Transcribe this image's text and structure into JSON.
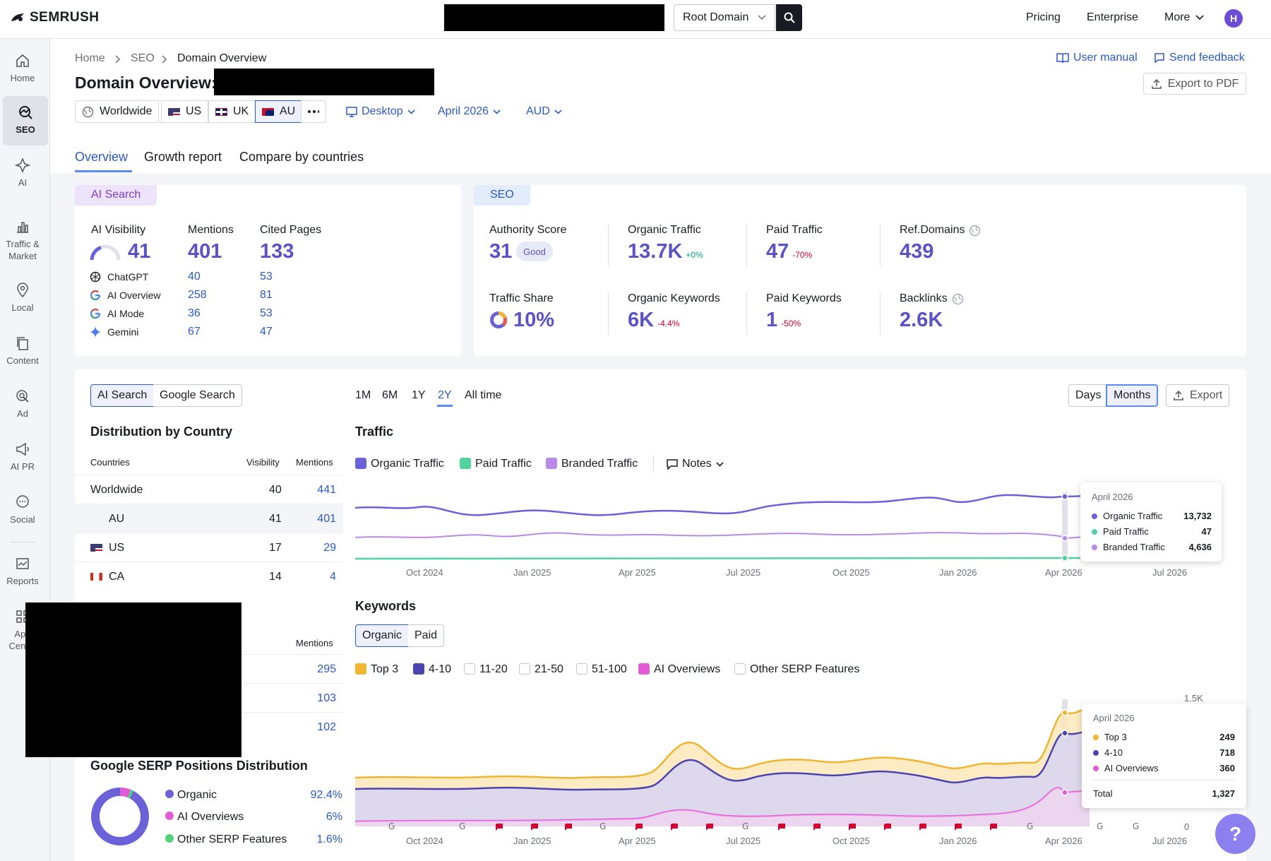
{
  "topbar": {
    "logo": "SEMRUSH",
    "db_select": "Root Domain",
    "nav": [
      "Pricing",
      "Enterprise",
      "More"
    ],
    "avatar": "H"
  },
  "sidebar": {
    "items": [
      "Home",
      "SEO",
      "AI",
      "Traffic &\nMarket",
      "Local",
      "Content",
      "Ad",
      "AI PR",
      "Social",
      "Reports",
      "App\nCenter"
    ]
  },
  "header": {
    "breadcrumb": [
      "Home",
      "SEO",
      "Domain Overview"
    ],
    "title": "Domain Overview:",
    "user_manual": "User manual",
    "send_feedback": "Send feedback",
    "export_pdf": "Export to PDF",
    "locations": [
      "Worldwide",
      "US",
      "UK",
      "AU"
    ],
    "device": "Desktop",
    "date": "April 2026",
    "currency": "AUD"
  },
  "tabs": [
    "Overview",
    "Growth report",
    "Compare by countries"
  ],
  "ai_card": {
    "pill": "AI Search",
    "headers": [
      "AI Visibility",
      "Mentions",
      "Cited Pages"
    ],
    "visibility": "41",
    "mentions": "401",
    "cited": "133",
    "rows": [
      {
        "name": "ChatGPT",
        "mentions": "40",
        "cited": "53"
      },
      {
        "name": "AI Overview",
        "mentions": "258",
        "cited": "81"
      },
      {
        "name": "AI Mode",
        "mentions": "36",
        "cited": "53"
      },
      {
        "name": "Gemini",
        "mentions": "67",
        "cited": "47"
      }
    ]
  },
  "seo_card": {
    "pill": "SEO",
    "authority_label": "Authority Score",
    "authority": "31",
    "authority_badge": "Good",
    "organic_label": "Organic Traffic",
    "organic": "13.7K",
    "organic_delta": "+0%",
    "paid_label": "Paid Traffic",
    "paid": "47",
    "paid_delta": "-70%",
    "refdomains_label": "Ref.Domains",
    "refdomains": "439",
    "share_label": "Traffic Share",
    "share": "10%",
    "okw_label": "Organic Keywords",
    "okw": "6K",
    "okw_delta": "-4.4%",
    "pkw_label": "Paid Keywords",
    "pkw": "1",
    "pkw_delta": "-50%",
    "backlinks_label": "Backlinks",
    "backlinks": "2.6K"
  },
  "lower": {
    "toggle": [
      "AI Search",
      "Google Search"
    ],
    "periods": [
      "1M",
      "6M",
      "1Y",
      "2Y",
      "All time"
    ],
    "view": [
      "Days",
      "Months"
    ],
    "export": "Export",
    "dist_title": "Distribution by Country",
    "dist_headers": [
      "Countries",
      "Visibility",
      "Mentions"
    ],
    "dist_rows": [
      {
        "country": "Worldwide",
        "visibility": "40",
        "mentions": "441"
      },
      {
        "country": "AU",
        "visibility": "41",
        "mentions": "401"
      },
      {
        "country": "US",
        "visibility": "17",
        "mentions": "29"
      },
      {
        "country": "CA",
        "visibility": "14",
        "mentions": "4"
      }
    ],
    "second_header": "Mentions",
    "second_rows": [
      "295",
      "103",
      "102"
    ],
    "serp_title": "Google SERP Positions Distribution",
    "serp_rows": [
      {
        "label": "Organic",
        "value": "92.4%",
        "color": "#6b62d9"
      },
      {
        "label": "AI Overviews",
        "value": "6%",
        "color": "#e45bd8"
      },
      {
        "label": "Other SERP Features",
        "value": "1.6%",
        "color": "#52d27a"
      }
    ],
    "traffic_title": "Traffic",
    "traffic_legend": [
      "Organic Traffic",
      "Paid Traffic",
      "Branded Traffic"
    ],
    "notes": "Notes",
    "keywords_title": "Keywords",
    "kw_toggle": [
      "Organic",
      "Paid"
    ],
    "kw_legend": [
      "Top 3",
      "4-10",
      "11-20",
      "21-50",
      "51-100",
      "AI Overviews",
      "Other SERP Features"
    ],
    "x_ticks": [
      "Oct 2024",
      "Jan 2025",
      "Apr 2025",
      "Jul 2025",
      "Oct 2025",
      "Jan 2026",
      "Apr 2026",
      "Jul 2026"
    ],
    "kw_y_ticks": [
      "1.5K",
      "0"
    ],
    "traffic_tooltip": {
      "title": "April 2026",
      "rows": [
        {
          "label": "Organic Traffic",
          "value": "13,732",
          "color": "#6b62d9"
        },
        {
          "label": "Paid Traffic",
          "value": "47",
          "color": "#52d2a0"
        },
        {
          "label": "Branded Traffic",
          "value": "4,636",
          "color": "#b98ae8"
        }
      ]
    },
    "kw_tooltip": {
      "title": "April 2026",
      "rows": [
        {
          "label": "Top 3",
          "value": "249",
          "color": "#f2b531"
        },
        {
          "label": "4-10",
          "value": "718",
          "color": "#4b44b0"
        },
        {
          "label": "AI Overviews",
          "value": "360",
          "color": "#e45bd8"
        }
      ],
      "total_label": "Total",
      "total": "1,327"
    },
    "help": "?"
  }
}
